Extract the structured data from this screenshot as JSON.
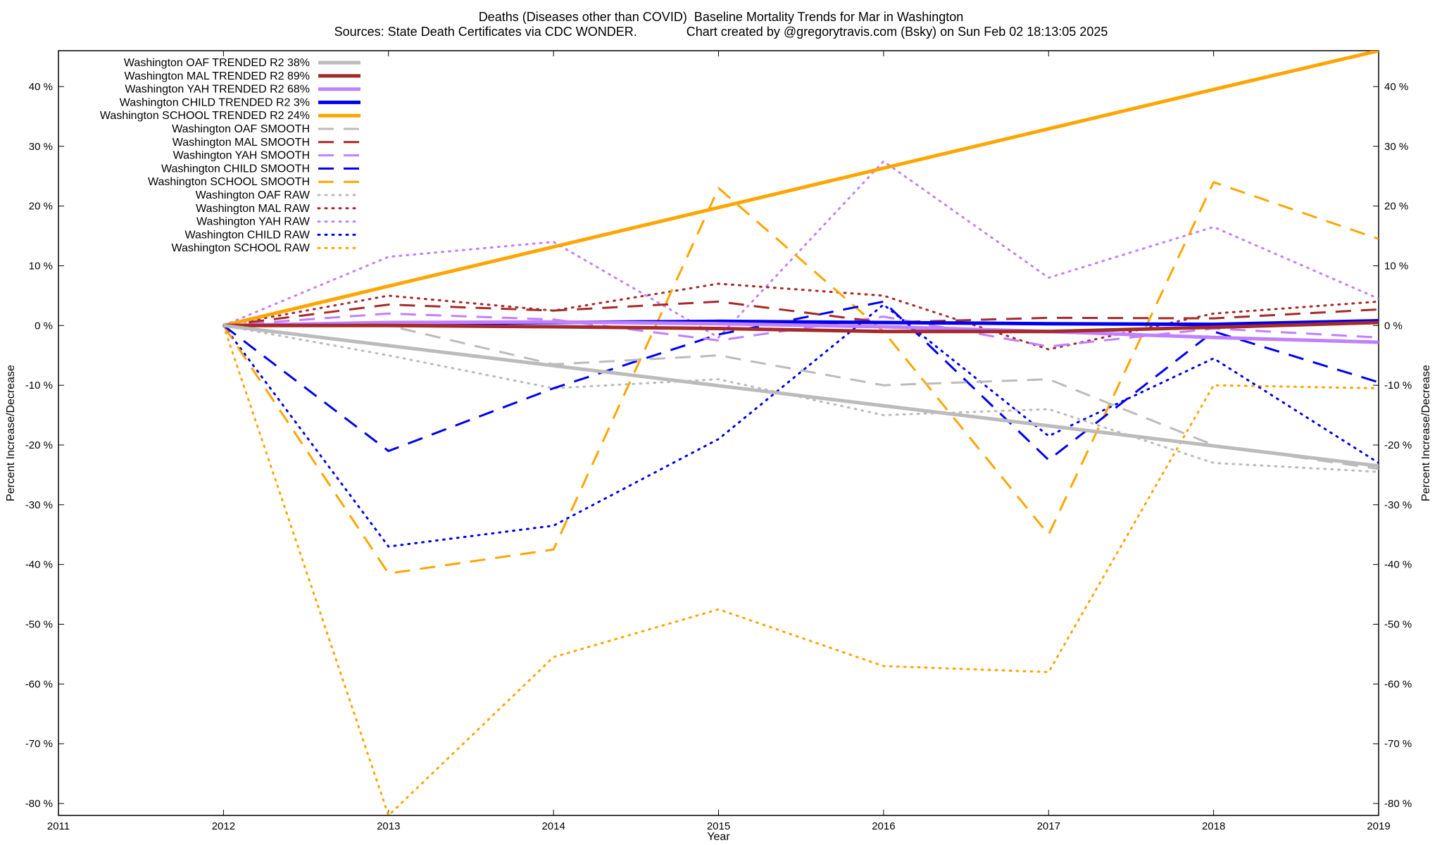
{
  "chart_data": {
    "type": "line",
    "title_line1": "Deaths (Diseases other than COVID)  Baseline Mortality Trends for Mar in Washington",
    "title_line2": "Sources: State Death Certificates via CDC WONDER.              Chart created by @gregorytravis.com (Bsky) on Sun Feb 02 18:13:05 2025",
    "xlabel": "Year",
    "ylabel": "Percent Increase/Decrease",
    "xlim": [
      2011,
      2019
    ],
    "ylim": [
      -82,
      46
    ],
    "x_ticks": [
      2011,
      2012,
      2013,
      2014,
      2015,
      2016,
      2017,
      2018,
      2019
    ],
    "y_ticks": [
      40,
      30,
      20,
      10,
      0,
      -10,
      -20,
      -30,
      -40,
      -50,
      -60,
      -70,
      -80
    ],
    "y_tick_labels": [
      "40 %",
      "30 %",
      "20 %",
      "10 %",
      "0 %",
      "-10 %",
      "-20 %",
      "-30 %",
      "-40 %",
      "-50 %",
      "-60 %",
      "-70 %",
      "-80 %"
    ],
    "grid": false,
    "legend_position": "top-left",
    "series": [
      {
        "name": "Washington OAF TRENDED R2  38%",
        "color": "#bbbbbb",
        "style": "solid",
        "width": 5,
        "x": [
          2012,
          2019
        ],
        "y": [
          0,
          -23.5
        ]
      },
      {
        "name": "Washington MAL TRENDED R2  89%",
        "color": "#a52a2a",
        "style": "solid",
        "width": 5,
        "x": [
          2012,
          2013,
          2014,
          2015,
          2016,
          2017,
          2018,
          2019
        ],
        "y": [
          0,
          0,
          -0.2,
          -0.5,
          -1.0,
          -1.0,
          -0.3,
          0.5
        ]
      },
      {
        "name": "Washington YAH TRENDED R2  68%",
        "color": "#c080ff",
        "style": "solid",
        "width": 5,
        "x": [
          2012,
          2013,
          2014,
          2015,
          2016,
          2017,
          2018,
          2019
        ],
        "y": [
          0,
          0.5,
          0.6,
          0.3,
          -0.2,
          -1.0,
          -2.0,
          -2.8
        ]
      },
      {
        "name": "Washington CHILD TRENDED R2  3%",
        "color": "#0000ee",
        "style": "solid",
        "width": 5,
        "x": [
          2012,
          2013,
          2014,
          2015,
          2016,
          2017,
          2018,
          2019
        ],
        "y": [
          0,
          0.3,
          0.5,
          0.7,
          0.5,
          0.3,
          0.2,
          0.8
        ]
      },
      {
        "name": "Washington SCHOOL TRENDED R2  24%",
        "color": "#ffa500",
        "style": "solid",
        "width": 5,
        "x": [
          2012,
          2018,
          2019
        ],
        "y": [
          0,
          39.5,
          46
        ]
      },
      {
        "name": "Washington OAF SMOOTH",
        "color": "#bbbbbb",
        "style": "dashed",
        "width": 3,
        "x": [
          2012,
          2013,
          2014,
          2015,
          2016,
          2017,
          2018,
          2019
        ],
        "y": [
          0,
          0,
          -6.5,
          -5,
          -10,
          -9,
          -20,
          -24
        ]
      },
      {
        "name": "Washington MAL SMOOTH",
        "color": "#a52a2a",
        "style": "dashed",
        "width": 3,
        "x": [
          2012,
          2013,
          2014,
          2015,
          2016,
          2017,
          2018,
          2019
        ],
        "y": [
          0,
          3.5,
          2.5,
          4,
          0.5,
          1.3,
          1.2,
          2.7
        ]
      },
      {
        "name": "Washington YAH SMOOTH",
        "color": "#c080ff",
        "style": "dashed",
        "width": 3,
        "x": [
          2012,
          2013,
          2014,
          2015,
          2016,
          2017,
          2018,
          2019
        ],
        "y": [
          0,
          2,
          1,
          -2.5,
          1.5,
          -3.5,
          -0.5,
          -2
        ]
      },
      {
        "name": "Washington CHILD SMOOTH",
        "color": "#0000ee",
        "style": "dashed",
        "width": 3,
        "x": [
          2012,
          2013,
          2014,
          2015,
          2016,
          2017,
          2018,
          2019
        ],
        "y": [
          0,
          -21,
          -10.5,
          -1.5,
          4,
          -22.5,
          -1,
          -9.5
        ]
      },
      {
        "name": "Washington SCHOOL SMOOTH",
        "color": "#ffa500",
        "style": "dashed",
        "width": 3,
        "x": [
          2012,
          2013,
          2014,
          2015,
          2016,
          2017,
          2018,
          2019
        ],
        "y": [
          0,
          -41.5,
          -37.5,
          23,
          -1,
          -35,
          24,
          14.5
        ]
      },
      {
        "name": "Washington OAF RAW",
        "color": "#bbbbbb",
        "style": "dotted",
        "width": 3,
        "x": [
          2012,
          2013,
          2014,
          2015,
          2016,
          2017,
          2018,
          2019
        ],
        "y": [
          0,
          -5,
          -10.5,
          -9,
          -15,
          -14,
          -23,
          -24.5
        ]
      },
      {
        "name": "Washington MAL RAW",
        "color": "#a52a2a",
        "style": "dotted",
        "width": 3,
        "x": [
          2012,
          2013,
          2014,
          2015,
          2016,
          2017,
          2018,
          2019
        ],
        "y": [
          0,
          5,
          2.5,
          7,
          5,
          -4,
          2,
          4
        ]
      },
      {
        "name": "Washington YAH RAW",
        "color": "#c080ff",
        "style": "dotted",
        "width": 3,
        "x": [
          2012,
          2013,
          2014,
          2015,
          2016,
          2017,
          2018,
          2019
        ],
        "y": [
          0,
          11.5,
          14,
          -2,
          27.5,
          8,
          16.5,
          4.5
        ]
      },
      {
        "name": "Washington CHILD RAW",
        "color": "#0000ee",
        "style": "dotted",
        "width": 3,
        "x": [
          2012,
          2013,
          2014,
          2015,
          2016,
          2017,
          2018,
          2019
        ],
        "y": [
          0,
          -37,
          -33.5,
          -19,
          3.5,
          -18.5,
          -5.5,
          -23
        ]
      },
      {
        "name": "Washington SCHOOL RAW",
        "color": "#ffa500",
        "style": "dotted",
        "width": 3,
        "x": [
          2012,
          2013,
          2014,
          2015,
          2016,
          2017,
          2018,
          2019
        ],
        "y": [
          0,
          -82,
          -55.5,
          -47.5,
          -57,
          -58,
          -10,
          -10.5
        ]
      }
    ]
  }
}
